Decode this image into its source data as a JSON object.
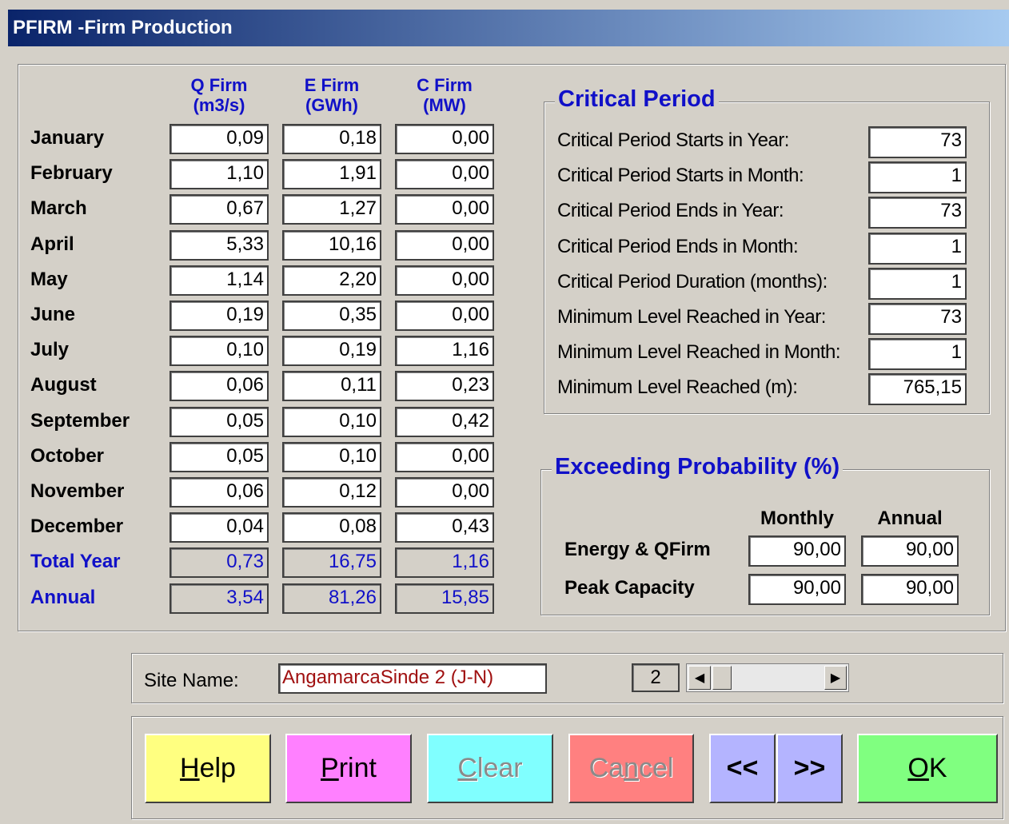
{
  "window": {
    "title": "PFIRM -Firm Production"
  },
  "table": {
    "columns": [
      {
        "name": "Q Firm",
        "unit": "(m3/s)"
      },
      {
        "name": "E Firm",
        "unit": "(GWh)"
      },
      {
        "name": "C Firm",
        "unit": "(MW)"
      }
    ],
    "rows": [
      {
        "label": "January",
        "values": [
          "0,09",
          "0,18",
          "0,00"
        ]
      },
      {
        "label": "February",
        "values": [
          "1,10",
          "1,91",
          "0,00"
        ]
      },
      {
        "label": "March",
        "values": [
          "0,67",
          "1,27",
          "0,00"
        ]
      },
      {
        "label": "April",
        "values": [
          "5,33",
          "10,16",
          "0,00"
        ]
      },
      {
        "label": "May",
        "values": [
          "1,14",
          "2,20",
          "0,00"
        ]
      },
      {
        "label": "June",
        "values": [
          "0,19",
          "0,35",
          "0,00"
        ]
      },
      {
        "label": "July",
        "values": [
          "0,10",
          "0,19",
          "1,16"
        ]
      },
      {
        "label": "August",
        "values": [
          "0,06",
          "0,11",
          "0,23"
        ]
      },
      {
        "label": "September",
        "values": [
          "0,05",
          "0,10",
          "0,42"
        ]
      },
      {
        "label": "October",
        "values": [
          "0,05",
          "0,10",
          "0,00"
        ]
      },
      {
        "label": "November",
        "values": [
          "0,06",
          "0,12",
          "0,00"
        ]
      },
      {
        "label": "December",
        "values": [
          "0,04",
          "0,08",
          "0,43"
        ]
      }
    ],
    "totals": [
      {
        "label": "Total Year",
        "values": [
          "0,73",
          "16,75",
          "1,16"
        ]
      },
      {
        "label": "Annual",
        "values": [
          "3,54",
          "81,26",
          "15,85"
        ]
      }
    ]
  },
  "critical_period": {
    "title": "Critical Period",
    "fields": [
      {
        "label": "Critical Period Starts in Year:",
        "value": "73"
      },
      {
        "label": "Critical Period Starts in Month:",
        "value": "1"
      },
      {
        "label": "Critical Period Ends in Year:",
        "value": "73"
      },
      {
        "label": "Critical Period Ends in Month:",
        "value": "1"
      },
      {
        "label": "Critical Period Duration (months):",
        "value": "1"
      },
      {
        "label": "Minimum Level Reached in Year:",
        "value": "73"
      },
      {
        "label": "Minimum Level Reached in Month:",
        "value": "1"
      },
      {
        "label": "Minimum Level Reached (m):",
        "value": "765,15"
      }
    ]
  },
  "exceeding": {
    "title": "Exceeding Probability (%)",
    "columns": [
      "Monthly",
      "Annual"
    ],
    "rows": [
      {
        "label": "Energy & QFirm",
        "values": [
          "90,00",
          "90,00"
        ]
      },
      {
        "label": "Peak Capacity",
        "values": [
          "90,00",
          "90,00"
        ]
      }
    ]
  },
  "site": {
    "label": "Site Name:",
    "value": "AngamarcaSinde 2 (J-N)",
    "index": "2"
  },
  "buttons": [
    {
      "label": "Help",
      "mnemonic": "H",
      "color": "#ffff80",
      "enabled": true
    },
    {
      "label": "Print",
      "mnemonic": "P",
      "color": "#ff80ff",
      "enabled": true
    },
    {
      "label": "Clear",
      "mnemonic": "C",
      "color": "#80ffff",
      "enabled": false
    },
    {
      "label": "Cancel",
      "mnemonic": "n",
      "color": "#ff8080",
      "enabled": false
    },
    {
      "label": "<<",
      "color": "#b4b4ff",
      "enabled": true
    },
    {
      "label": ">>",
      "color": "#b4b4ff",
      "enabled": true
    },
    {
      "label": "OK",
      "mnemonic": "O",
      "color": "#80ff80",
      "enabled": true
    }
  ]
}
